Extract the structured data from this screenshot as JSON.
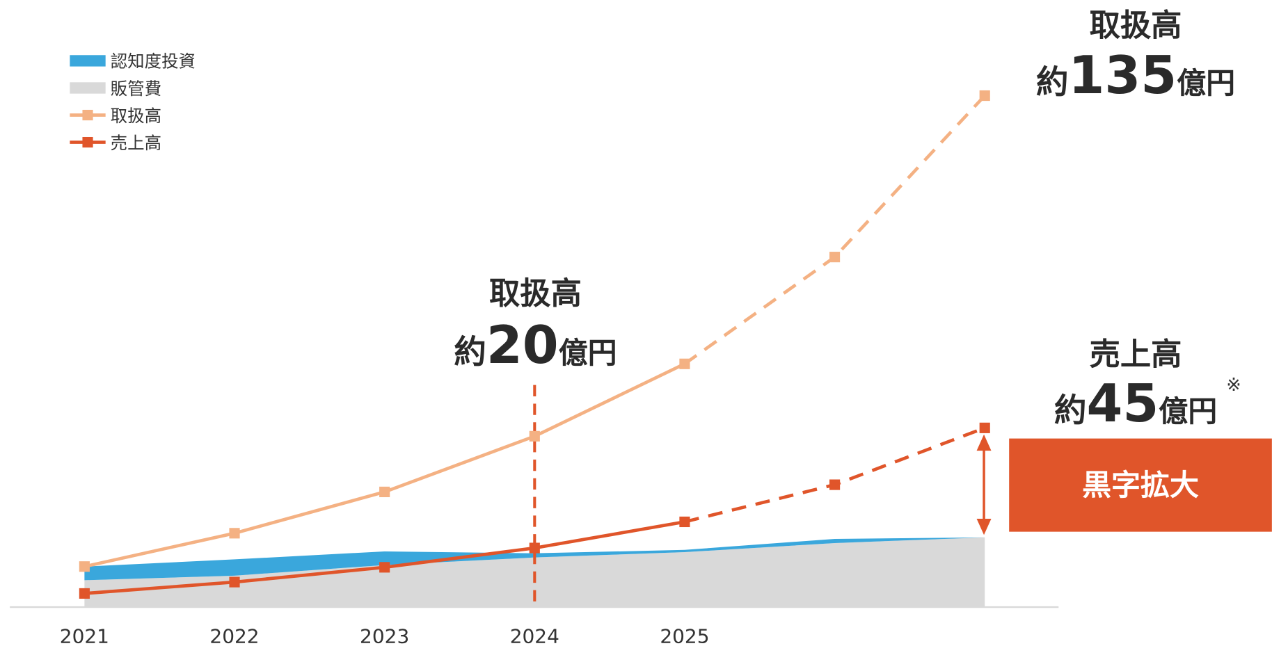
{
  "chart_data": {
    "type": "combo",
    "categories": [
      "2021",
      "2022",
      "2023",
      "2024",
      "2025",
      null,
      null
    ],
    "series": [
      {
        "name": "認知度投資",
        "kind": "area",
        "color": "#3aa7dc",
        "values": [
          3.6,
          4.3,
          3.6,
          1.1,
          0.6,
          1.1,
          0
        ]
      },
      {
        "name": "販管費",
        "kind": "area",
        "color": "#d9d9d9",
        "values": [
          7.1,
          8.3,
          11.1,
          13.1,
          14.5,
          16.9,
          18.4
        ]
      },
      {
        "name": "取扱高",
        "kind": "line",
        "color": "#f4b183",
        "values": [
          10.7,
          19.5,
          30.4,
          45.1,
          64.2,
          92.4,
          135
        ]
      },
      {
        "name": "売上高",
        "kind": "line",
        "color": "#e0552a",
        "values": [
          3.6,
          6.6,
          10.5,
          15.6,
          22.5,
          32.3,
          47.3
        ]
      }
    ],
    "ylim": [
      0,
      135
    ],
    "dash_from_index": 4,
    "vline_index": 3,
    "annotations": [
      {
        "title": "取扱高",
        "prefix": "約",
        "number": 20,
        "unit": "億円"
      },
      {
        "title": "取扱高",
        "prefix": "約",
        "number": 135,
        "unit": "億円"
      },
      {
        "title": "売上高",
        "prefix": "約",
        "number": 45,
        "unit": "億円",
        "note": "※"
      }
    ],
    "callout": "黒字拡大"
  }
}
